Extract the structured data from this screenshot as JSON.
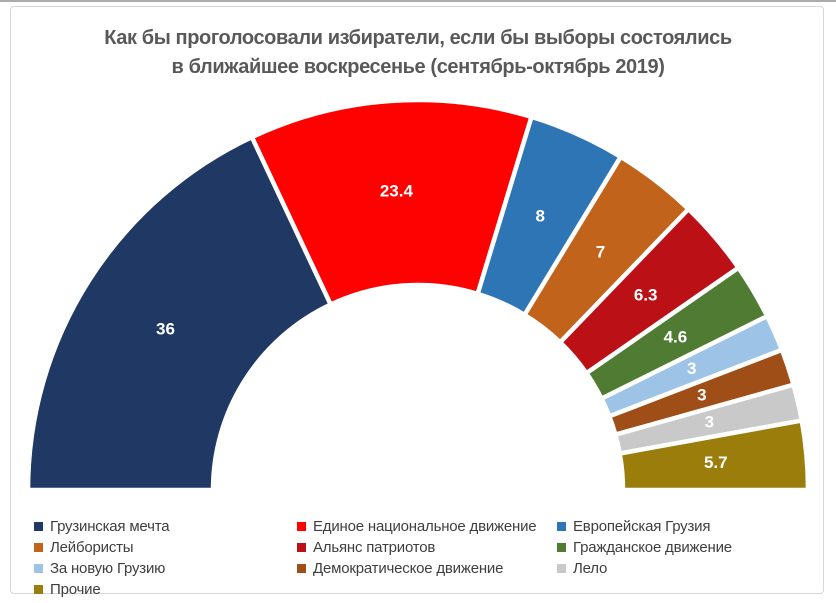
{
  "title": {
    "line1": "Как бы проголосовали избиратели, если бы выборы состоялись",
    "line2": "в ближайшее воскресенье (сентябрь-октябрь 2019)"
  },
  "chart_data": {
    "type": "pie",
    "subtype": "half-donut",
    "title": "Как бы проголосовали избиратели, если бы выборы состоялись в ближайшее воскресенье (сентябрь-октябрь 2019)",
    "unit": "percent",
    "total": 100,
    "span_degrees": 180,
    "legend_position": "bottom",
    "categories": [
      "Грузинская мечта",
      "Единое национальное движение",
      "Европейская Грузия",
      "Лейбористы",
      "Альянс патриотов",
      "Гражданское движение",
      "За новую Грузию",
      "Демократическое движение",
      "Лело",
      "Прочие"
    ],
    "values": [
      36,
      23.4,
      8,
      7,
      6.3,
      4.6,
      3,
      3,
      3,
      5.7
    ],
    "labels": [
      "36",
      "23.4",
      "8",
      "7",
      "6.3",
      "4.6",
      "3",
      "3",
      "3",
      "5.7"
    ],
    "colors": [
      "#1F3864",
      "#FE0101",
      "#2E75B6",
      "#C2631B",
      "#BB1016",
      "#4F7B33",
      "#9DC3E6",
      "#9E4E16",
      "#C9C9C9",
      "#9A7D0A"
    ],
    "label_color": "#ffffff"
  }
}
